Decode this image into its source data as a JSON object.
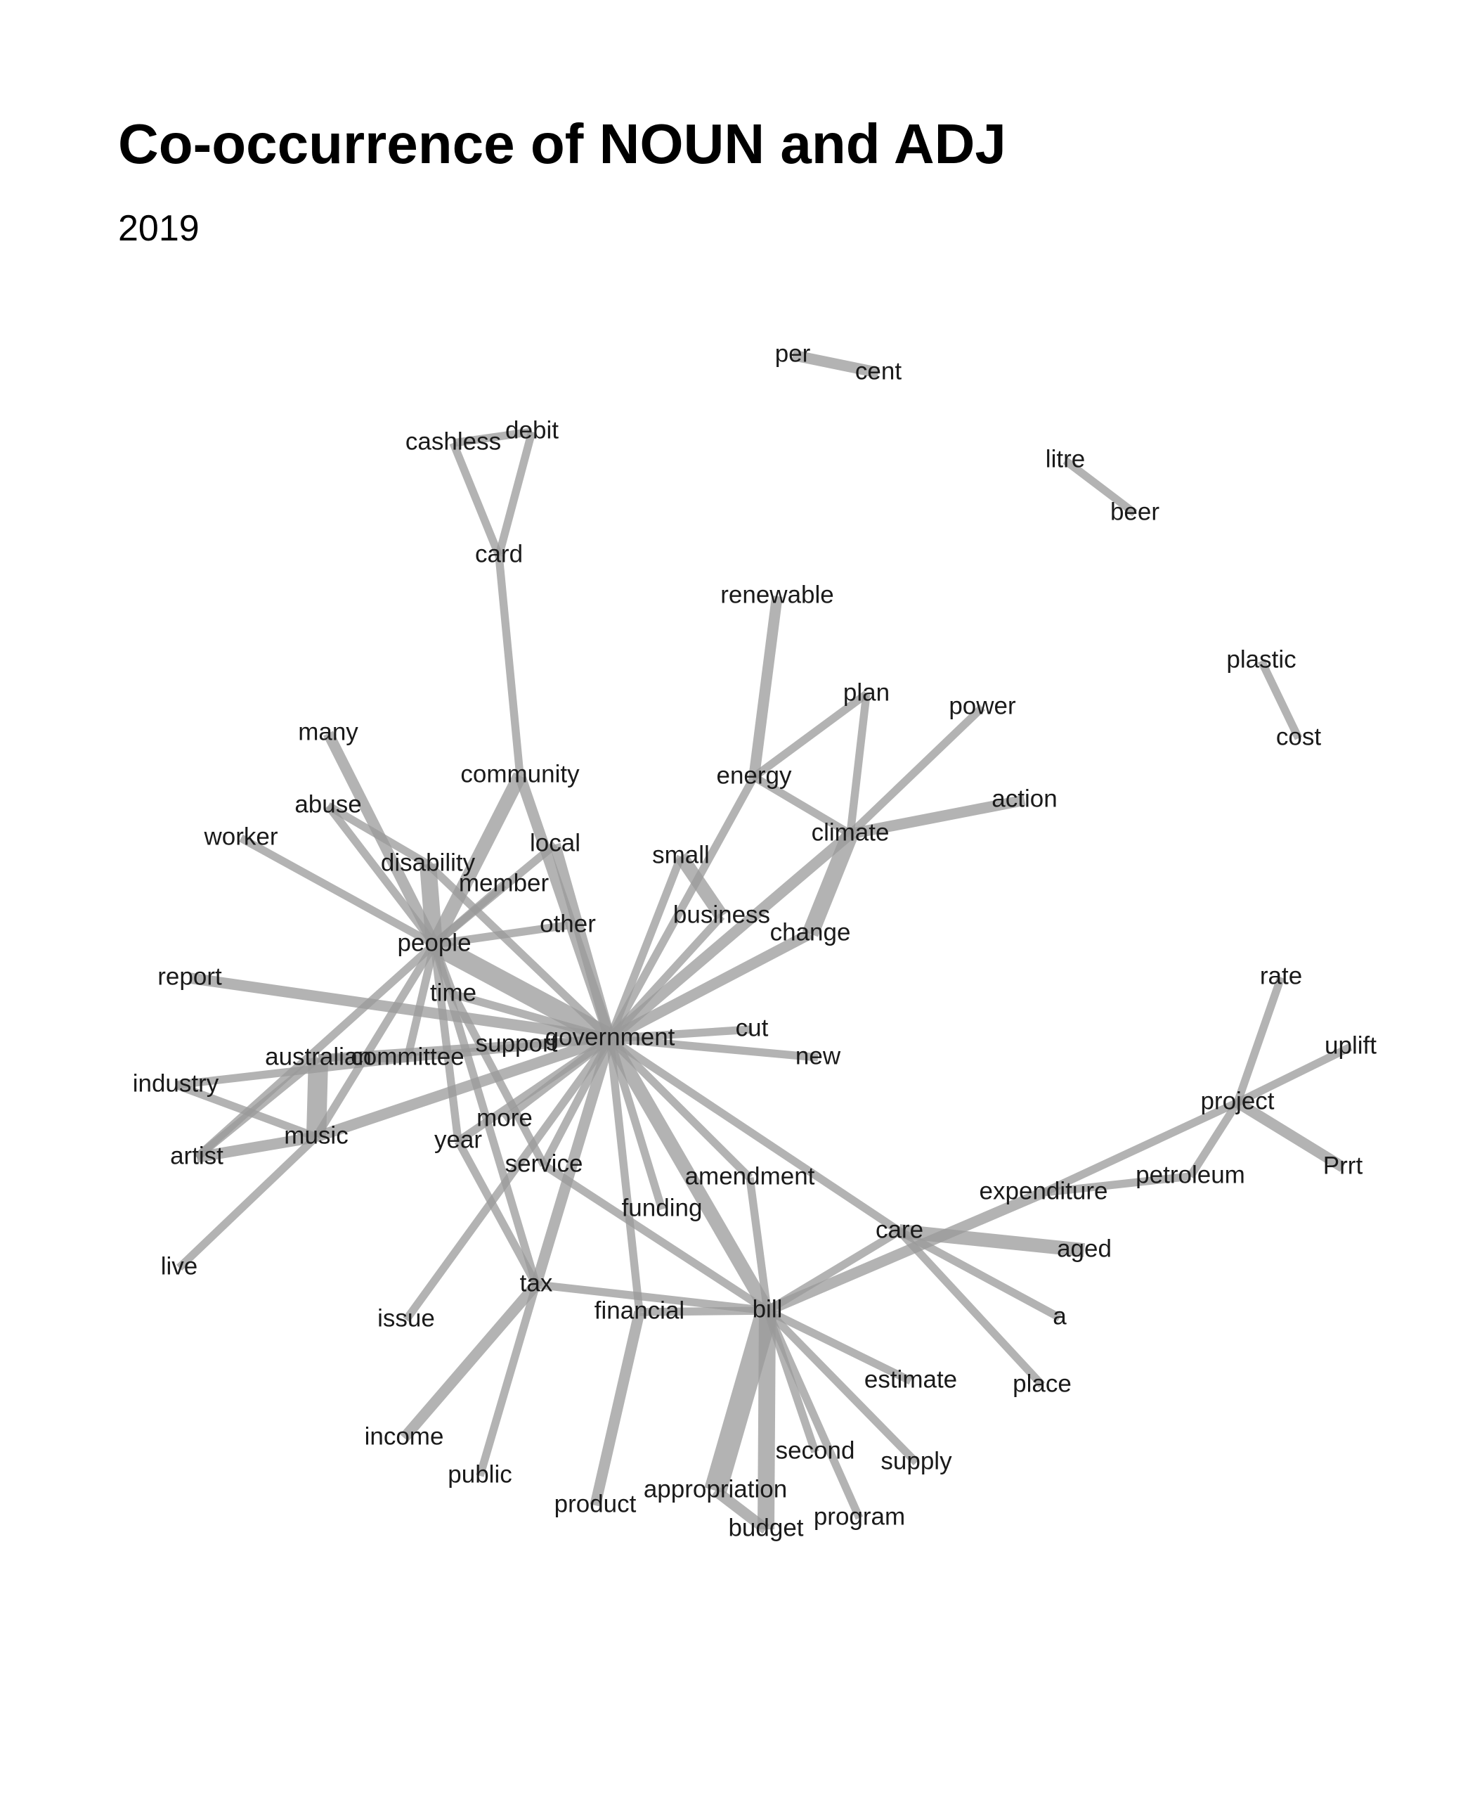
{
  "title": "Co-occurrence of NOUN and ADJ",
  "subtitle": "2019",
  "chart_data": {
    "type": "network",
    "nodes": [
      "per",
      "cent",
      "cashless",
      "debit",
      "card",
      "litre",
      "beer",
      "renewable",
      "plastic",
      "cost",
      "plan",
      "power",
      "many",
      "community",
      "energy",
      "action",
      "abuse",
      "worker",
      "climate",
      "local",
      "disability",
      "small",
      "member",
      "business",
      "other",
      "change",
      "people",
      "report",
      "rate",
      "time",
      "cut",
      "government",
      "support",
      "australian",
      "committee",
      "new",
      "uplift",
      "industry",
      "project",
      "more",
      "music",
      "year",
      "artist",
      "service",
      "amendment",
      "petroleum",
      "expenditure",
      "funding",
      "care",
      "aged",
      "live",
      "tax",
      "issue",
      "financial",
      "bill",
      "a",
      "estimate",
      "place",
      "income",
      "second",
      "supply",
      "public",
      "appropriation",
      "product",
      "program",
      "budget",
      "Prrt"
    ],
    "edges": [
      {
        "source": "per",
        "target": "cent",
        "weight": 3
      },
      {
        "source": "cashless",
        "target": "debit",
        "weight": 2
      },
      {
        "source": "cashless",
        "target": "card",
        "weight": 2
      },
      {
        "source": "debit",
        "target": "card",
        "weight": 2
      },
      {
        "source": "card",
        "target": "community",
        "weight": 2
      },
      {
        "source": "litre",
        "target": "beer",
        "weight": 2
      },
      {
        "source": "plastic",
        "target": "cost",
        "weight": 2
      },
      {
        "source": "renewable",
        "target": "energy",
        "weight": 3
      },
      {
        "source": "energy",
        "target": "plan",
        "weight": 2
      },
      {
        "source": "energy",
        "target": "climate",
        "weight": 2
      },
      {
        "source": "energy",
        "target": "government",
        "weight": 2
      },
      {
        "source": "plan",
        "target": "climate",
        "weight": 2
      },
      {
        "source": "power",
        "target": "climate",
        "weight": 2
      },
      {
        "source": "action",
        "target": "climate",
        "weight": 3
      },
      {
        "source": "climate",
        "target": "change",
        "weight": 5
      },
      {
        "source": "climate",
        "target": "government",
        "weight": 3
      },
      {
        "source": "change",
        "target": "government",
        "weight": 3
      },
      {
        "source": "small",
        "target": "business",
        "weight": 4
      },
      {
        "source": "small",
        "target": "government",
        "weight": 2
      },
      {
        "source": "business",
        "target": "government",
        "weight": 2
      },
      {
        "source": "community",
        "target": "people",
        "weight": 4
      },
      {
        "source": "community",
        "target": "government",
        "weight": 3
      },
      {
        "source": "many",
        "target": "people",
        "weight": 3
      },
      {
        "source": "abuse",
        "target": "disability",
        "weight": 2
      },
      {
        "source": "abuse",
        "target": "people",
        "weight": 2
      },
      {
        "source": "worker",
        "target": "people",
        "weight": 2
      },
      {
        "source": "disability",
        "target": "people",
        "weight": 5
      },
      {
        "source": "disability",
        "target": "government",
        "weight": 2
      },
      {
        "source": "local",
        "target": "people",
        "weight": 2
      },
      {
        "source": "local",
        "target": "government",
        "weight": 3
      },
      {
        "source": "member",
        "target": "people",
        "weight": 2
      },
      {
        "source": "other",
        "target": "people",
        "weight": 2
      },
      {
        "source": "people",
        "target": "government",
        "weight": 6
      },
      {
        "source": "people",
        "target": "time",
        "weight": 2
      },
      {
        "source": "people",
        "target": "committee",
        "weight": 2
      },
      {
        "source": "people",
        "target": "year",
        "weight": 2
      },
      {
        "source": "people",
        "target": "tax",
        "weight": 2
      },
      {
        "source": "people",
        "target": "music",
        "weight": 2
      },
      {
        "source": "people",
        "target": "artist",
        "weight": 2
      },
      {
        "source": "report",
        "target": "government",
        "weight": 3
      },
      {
        "source": "time",
        "target": "government",
        "weight": 2
      },
      {
        "source": "time",
        "target": "service",
        "weight": 2
      },
      {
        "source": "government",
        "target": "cut",
        "weight": 2
      },
      {
        "source": "government",
        "target": "new",
        "weight": 2
      },
      {
        "source": "government",
        "target": "australian",
        "weight": 2
      },
      {
        "source": "government",
        "target": "committee",
        "weight": 2
      },
      {
        "source": "government",
        "target": "music",
        "weight": 3
      },
      {
        "source": "government",
        "target": "more",
        "weight": 2
      },
      {
        "source": "government",
        "target": "year",
        "weight": 2
      },
      {
        "source": "government",
        "target": "service",
        "weight": 2
      },
      {
        "source": "government",
        "target": "amendment",
        "weight": 2
      },
      {
        "source": "government",
        "target": "funding",
        "weight": 2
      },
      {
        "source": "government",
        "target": "financial",
        "weight": 2
      },
      {
        "source": "government",
        "target": "bill",
        "weight": 4
      },
      {
        "source": "government",
        "target": "tax",
        "weight": 3
      },
      {
        "source": "government",
        "target": "issue",
        "weight": 2
      },
      {
        "source": "government",
        "target": "care",
        "weight": 2
      },
      {
        "source": "australian",
        "target": "committee",
        "weight": 2
      },
      {
        "source": "australian",
        "target": "music",
        "weight": 6
      },
      {
        "source": "australian",
        "target": "artist",
        "weight": 2
      },
      {
        "source": "industry",
        "target": "music",
        "weight": 2
      },
      {
        "source": "industry",
        "target": "committee",
        "weight": 2
      },
      {
        "source": "artist",
        "target": "music",
        "weight": 3
      },
      {
        "source": "live",
        "target": "music",
        "weight": 2
      },
      {
        "source": "year",
        "target": "tax",
        "weight": 2
      },
      {
        "source": "service",
        "target": "bill",
        "weight": 2
      },
      {
        "source": "tax",
        "target": "bill",
        "weight": 2
      },
      {
        "source": "tax",
        "target": "income",
        "weight": 3
      },
      {
        "source": "tax",
        "target": "public",
        "weight": 2
      },
      {
        "source": "financial",
        "target": "bill",
        "weight": 2
      },
      {
        "source": "financial",
        "target": "product",
        "weight": 3
      },
      {
        "source": "amendment",
        "target": "bill",
        "weight": 2
      },
      {
        "source": "bill",
        "target": "expenditure",
        "weight": 3
      },
      {
        "source": "bill",
        "target": "care",
        "weight": 2
      },
      {
        "source": "bill",
        "target": "estimate",
        "weight": 2
      },
      {
        "source": "bill",
        "target": "supply",
        "weight": 2
      },
      {
        "source": "bill",
        "target": "second",
        "weight": 2
      },
      {
        "source": "bill",
        "target": "program",
        "weight": 2
      },
      {
        "source": "bill",
        "target": "appropriation",
        "weight": 7
      },
      {
        "source": "bill",
        "target": "budget",
        "weight": 5
      },
      {
        "source": "appropriation",
        "target": "budget",
        "weight": 3
      },
      {
        "source": "care",
        "target": "aged",
        "weight": 4
      },
      {
        "source": "care",
        "target": "a",
        "weight": 2
      },
      {
        "source": "care",
        "target": "place",
        "weight": 2
      },
      {
        "source": "expenditure",
        "target": "project",
        "weight": 2
      },
      {
        "source": "expenditure",
        "target": "petroleum",
        "weight": 2
      },
      {
        "source": "petroleum",
        "target": "project",
        "weight": 2
      },
      {
        "source": "rate",
        "target": "project",
        "weight": 2
      },
      {
        "source": "uplift",
        "target": "project",
        "weight": 2
      },
      {
        "source": "Prrt",
        "target": "project",
        "weight": 3
      }
    ]
  }
}
